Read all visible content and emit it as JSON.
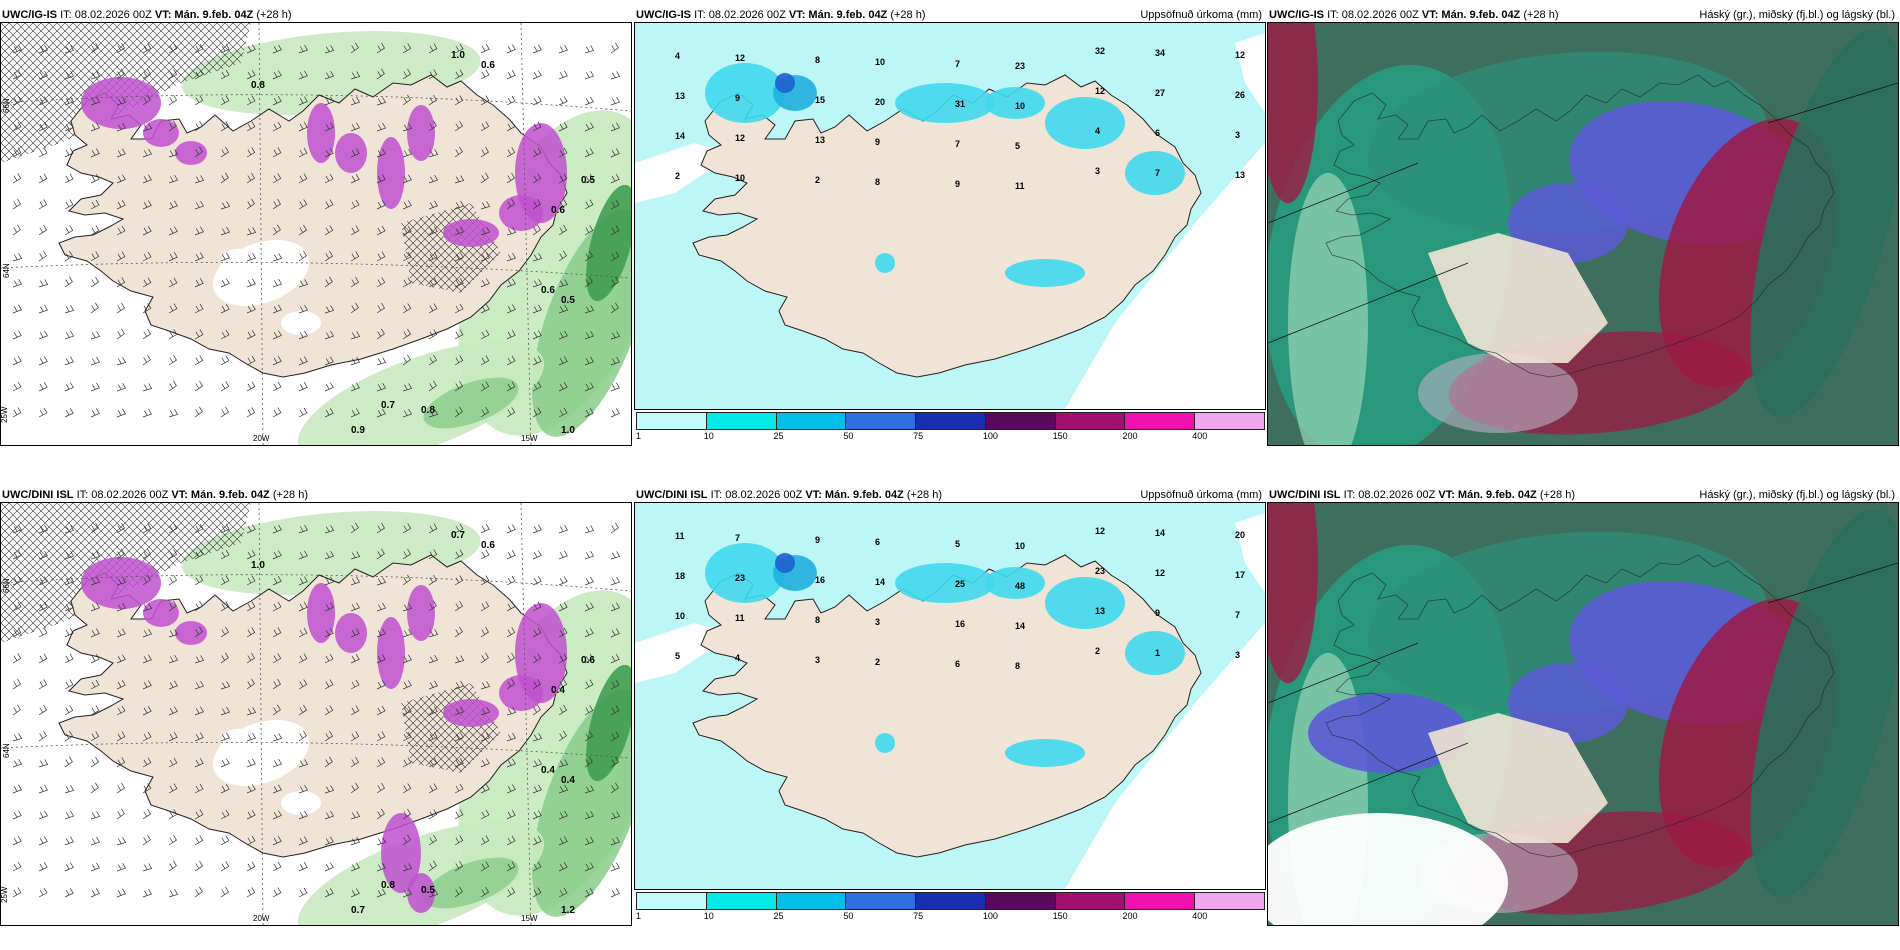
{
  "rows": [
    {
      "wind_panel": {
        "model": "UWC/IG-IS",
        "it": "IT: 08.02.2026 00Z",
        "vt_prefix": "VT:",
        "vt": "Mán. 9.feb. 04Z",
        "lead": "(+28 h)",
        "title_right": ""
      },
      "precip_panel": {
        "model": "UWC/IG-IS",
        "it": "IT: 08.02.2026 00Z",
        "vt_prefix": "VT:",
        "vt": "Mán. 9.feb. 04Z",
        "lead": "(+28 h)",
        "title_right": "Uppsöfnuð úrkoma (mm)"
      },
      "cloud_panel": {
        "model": "UWC/IG-IS",
        "it": "IT: 08.02.2026 00Z",
        "vt_prefix": "VT:",
        "vt": "Mán. 9.feb. 04Z",
        "lead": "(+28 h)",
        "title_right": "Háský (gr.), miðský (fj.bl.) og lágský (bl.)"
      },
      "wind_labels": [
        "0.8",
        "0.6",
        "1.0",
        "0.5",
        "0.6",
        "0.8",
        "0.9",
        "0.7",
        "1.0",
        "0.6",
        "0.5"
      ],
      "precip_labels": [
        "4",
        "12",
        "8",
        "10",
        "7",
        "23",
        "32",
        "34",
        "12",
        "13",
        "9",
        "15",
        "20",
        "31",
        "10",
        "12",
        "27",
        "26",
        "14",
        "12",
        "13",
        "9",
        "7",
        "5",
        "4",
        "6",
        "3",
        "2",
        "10",
        "2",
        "8",
        "9",
        "11",
        "3",
        "7",
        "13"
      ],
      "grid_labels": [
        "20W",
        "15W",
        "66N",
        "64N",
        "25W"
      ]
    },
    {
      "wind_panel": {
        "model": "UWC/DINI ISL",
        "it": "IT: 08.02.2026 00Z",
        "vt_prefix": "VT:",
        "vt": "Mán. 9.feb. 04Z",
        "lead": "(+28 h)",
        "title_right": ""
      },
      "precip_panel": {
        "model": "UWC/DINI ISL",
        "it": "IT: 08.02.2026 00Z",
        "vt_prefix": "VT:",
        "vt": "Mán. 9.feb. 04Z",
        "lead": "(+28 h)",
        "title_right": "Uppsöfnuð úrkoma (mm)"
      },
      "cloud_panel": {
        "model": "UWC/DINI ISL",
        "it": "IT: 08.02.2026 00Z",
        "vt_prefix": "VT:",
        "vt": "Mán. 9.feb. 04Z",
        "lead": "(+28 h)",
        "title_right": "Háský (gr.), miðský (fj.bl.) og lágský (bl.)"
      },
      "wind_labels": [
        "1.0",
        "0.6",
        "0.7",
        "0.4",
        "0.4",
        "0.5",
        "0.7",
        "0.8",
        "1.2",
        "0.4",
        "0.6"
      ],
      "precip_labels": [
        "11",
        "7",
        "9",
        "6",
        "5",
        "10",
        "12",
        "14",
        "20",
        "18",
        "23",
        "16",
        "14",
        "25",
        "48",
        "23",
        "12",
        "17",
        "10",
        "11",
        "8",
        "3",
        "16",
        "14",
        "13",
        "9",
        "7",
        "5",
        "4",
        "3",
        "2",
        "6",
        "8",
        "2",
        "1",
        "3"
      ],
      "grid_labels": [
        "20W",
        "15W",
        "66N",
        "64N",
        "25W"
      ]
    }
  ],
  "colorbar": {
    "ticks": [
      "1",
      "10",
      "25",
      "50",
      "75",
      "100",
      "150",
      "200",
      "400"
    ],
    "colors": [
      "#c4fcfc",
      "#00e8e8",
      "#00c0e8",
      "#2f6fe0",
      "#1a2fb0",
      "#5a0a5a",
      "#a0106e",
      "#f010b0",
      "#f0a8f0"
    ]
  },
  "colors": {
    "land": "#f0e4d6",
    "precip_base": "#bdf6f6",
    "wind_green_light": "#c8eac0",
    "wind_green_mid": "#88cc88",
    "wind_green_dark": "#3c9a4c",
    "wind_purple": "#c050d0",
    "cloud_high_grey": "#bab3c6",
    "cloud_mid_blue": "#5b5bd6",
    "cloud_low_teal": "#1fa888",
    "cloud_deep_red": "#9c1a44"
  }
}
